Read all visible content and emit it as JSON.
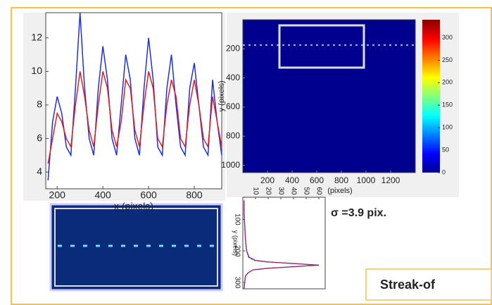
{
  "chart_data": [
    {
      "type": "line",
      "xlabel": "x  (pixels)",
      "xlim": [
        150,
        920
      ],
      "ylim": [
        3,
        13.5
      ],
      "xticks": [
        200,
        400,
        600,
        800
      ],
      "yticks": [
        4,
        6,
        8,
        10,
        12
      ],
      "x": [
        160,
        180,
        200,
        220,
        240,
        260,
        280,
        300,
        320,
        340,
        360,
        380,
        400,
        420,
        440,
        460,
        480,
        500,
        520,
        540,
        560,
        580,
        600,
        620,
        640,
        660,
        680,
        700,
        720,
        740,
        760,
        780,
        800,
        820,
        840,
        860,
        880,
        900,
        920
      ],
      "series": [
        {
          "color": "#1f2fe0",
          "values": [
            3.5,
            7,
            8.5,
            7.5,
            5.5,
            5,
            9,
            13.5,
            9,
            6,
            5,
            9,
            11.5,
            9.5,
            6,
            5,
            8,
            11,
            9.5,
            6,
            5,
            9,
            12,
            9.5,
            5.5,
            5,
            9,
            11,
            8,
            5.5,
            5,
            9,
            10.5,
            8,
            5.5,
            5,
            9.5,
            7,
            5
          ]
        },
        {
          "color": "#e02020",
          "values": [
            4.5,
            6,
            7.5,
            7,
            6,
            5.5,
            8,
            10,
            8.5,
            6.5,
            5.5,
            8,
            10,
            9,
            6.5,
            5.5,
            7,
            9.5,
            9,
            6.5,
            5.5,
            8,
            10,
            9,
            6,
            5.5,
            8,
            9.5,
            8.5,
            6,
            5.5,
            8,
            9.5,
            8,
            6,
            5.5,
            8.5,
            7,
            5.5
          ]
        }
      ]
    },
    {
      "type": "image",
      "xlabel": "(pixels)",
      "ylabel": "y  (pixels)",
      "xlim": [
        0,
        1400
      ],
      "ylim": [
        0,
        1050
      ],
      "xticks": [
        200,
        400,
        600,
        800,
        1000,
        1200
      ],
      "yticks": [
        200,
        400,
        600,
        800,
        1000
      ],
      "colorbar": {
        "lim": [
          0,
          340
        ],
        "ticks": [
          0,
          50,
          100,
          150,
          200,
          250,
          300
        ]
      }
    },
    {
      "type": "profile",
      "ylabel": "y  (pixels)",
      "xlim": [
        0,
        65
      ],
      "ylim": [
        30,
        320
      ],
      "xticks": [
        10,
        20,
        30,
        40,
        50,
        60
      ],
      "yticks": [
        100,
        200,
        300
      ],
      "x": [
        40,
        80,
        120,
        160,
        200,
        220,
        230,
        235,
        240,
        245,
        250,
        255,
        260,
        270,
        280,
        300,
        320
      ],
      "series": [
        {
          "color": "#1f2fe0",
          "values": [
            1,
            1,
            1.5,
            2,
            3,
            5,
            10,
            20,
            40,
            60,
            40,
            20,
            8,
            4,
            2,
            1.5,
            1
          ]
        },
        {
          "color": "#e02020",
          "values": [
            1,
            1,
            1.5,
            2,
            3,
            4.5,
            9,
            19,
            41,
            58,
            41,
            19,
            8,
            4,
            2,
            1.5,
            1
          ]
        }
      ]
    }
  ],
  "texts": {
    "sigma": "σ =3.9 pix.",
    "banner": "Streak-of"
  }
}
